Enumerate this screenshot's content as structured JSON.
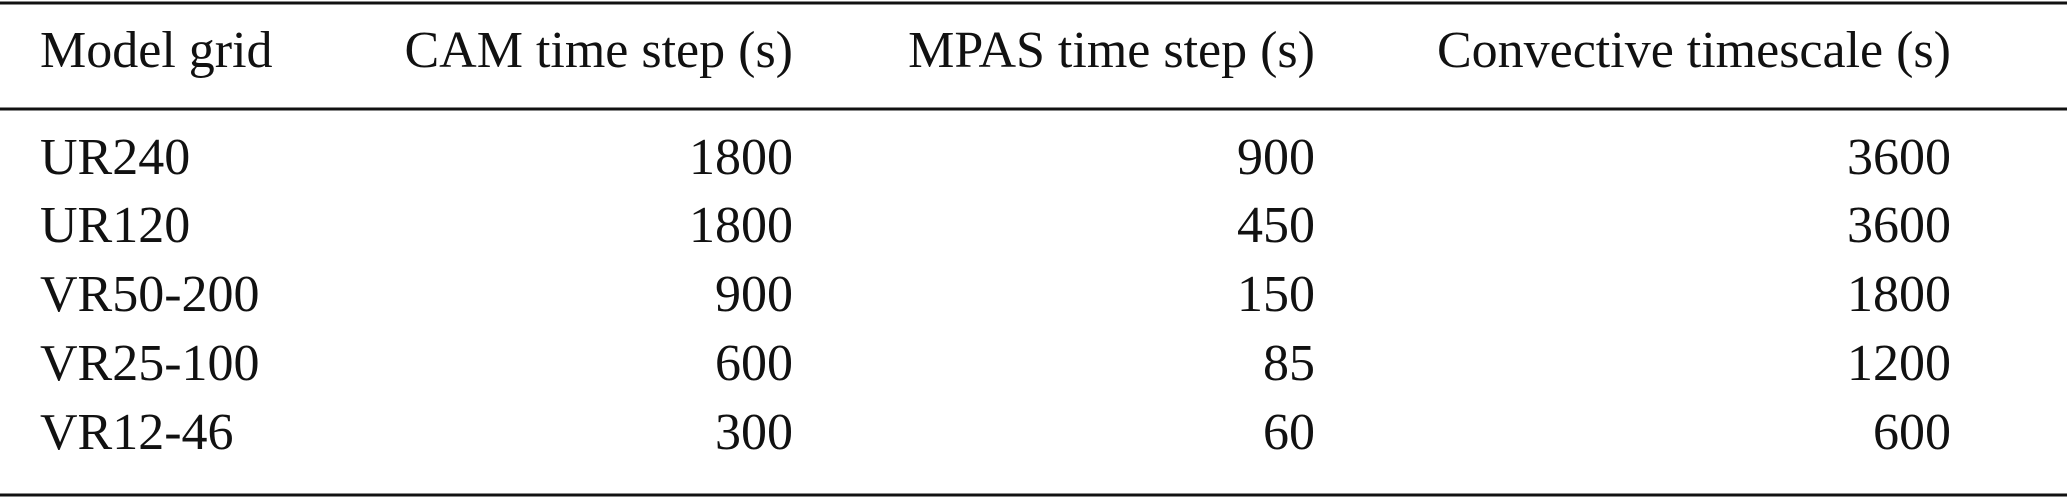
{
  "table": {
    "header": [
      "Model grid",
      "CAM time step (s)",
      "MPAS time step (s)",
      "Convective timescale (s)"
    ],
    "rows": [
      [
        "UR240",
        1800,
        900,
        3600
      ],
      [
        "UR120",
        1800,
        450,
        3600
      ],
      [
        "VR50-200",
        900,
        150,
        1800
      ],
      [
        "VR25-100",
        600,
        85,
        1200
      ],
      [
        "VR12-46",
        300,
        60,
        600
      ]
    ]
  }
}
